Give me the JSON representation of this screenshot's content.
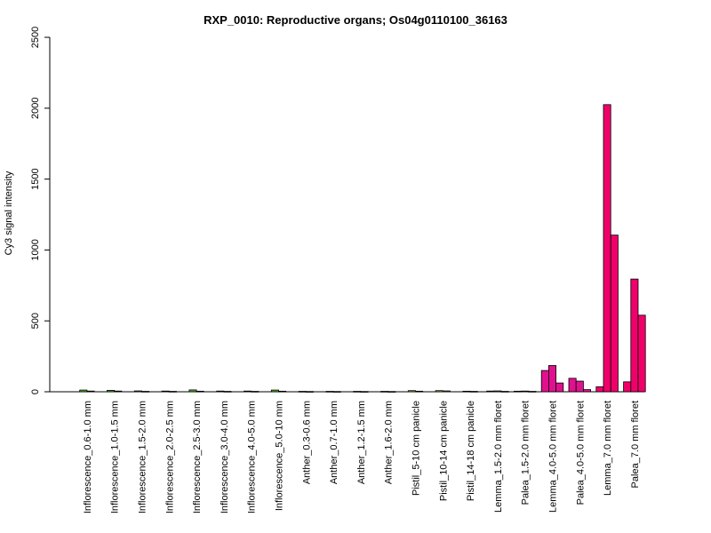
{
  "chart_data": {
    "type": "bar",
    "title": "RXP_0010: Reproductive organs; Os04g0110100_36163",
    "xlabel": "",
    "ylabel": "Cy3 signal intensity",
    "ylim": [
      0,
      2500
    ],
    "yticks": [
      0,
      500,
      1000,
      1500,
      2000,
      2500
    ],
    "grid": false,
    "legend": "none",
    "categories": [
      "Inflorescence_0.6-1.0 mm",
      "Inflorescence_1.0-1.5 mm",
      "Inflorescence_1.5-2.0 mm",
      "Inflorescence_2.0-2.5 mm",
      "Inflorescence_2.5-3.0 mm",
      "Inflorescence_3.0-4.0 mm",
      "Inflorescence_4.0-5.0 mm",
      "Inflorescence_5.0-10 mm",
      "Anther_0.3-0.6 mm",
      "Anther_0.7-1.0 mm",
      "Anther_1.2-1.5 mm",
      "Anther_1.6-2.0 mm",
      "Pistil_5-10 cm panicle",
      "Pistil_10-14 cm panicle",
      "Pistil_14-18 cm panicle",
      "Lemma_1.5-2.0 mm floret",
      "Palea_1.5-2.0 mm floret",
      "Lemma_4.0-5.0 mm floret",
      "Palea_4.0-5.0 mm floret",
      "Lemma_7.0 mm floret",
      "Palea_7.0 mm floret"
    ],
    "groups": [
      {
        "color": "#4daf2b",
        "values": [
          12,
          5
        ]
      },
      {
        "color": "#4daf2b",
        "values": [
          10,
          5
        ]
      },
      {
        "color": "#4daf2b",
        "values": [
          6,
          3
        ]
      },
      {
        "color": "#4daf2b",
        "values": [
          5,
          3
        ]
      },
      {
        "color": "#4daf2b",
        "values": [
          13,
          4
        ]
      },
      {
        "color": "#4daf2b",
        "values": [
          5,
          3
        ]
      },
      {
        "color": "#4daf2b",
        "values": [
          5,
          3
        ]
      },
      {
        "color": "#4daf2b",
        "values": [
          12,
          4
        ]
      },
      {
        "color": "#999999",
        "values": [
          3,
          2
        ]
      },
      {
        "color": "#999999",
        "values": [
          3,
          2
        ]
      },
      {
        "color": "#999999",
        "values": [
          3,
          2
        ]
      },
      {
        "color": "#999999",
        "values": [
          3,
          2
        ]
      },
      {
        "color": "#b5a642",
        "values": [
          8,
          4
        ]
      },
      {
        "color": "#b5a642",
        "values": [
          8,
          6
        ]
      },
      {
        "color": "#b5a642",
        "values": [
          4,
          3
        ]
      },
      {
        "color": "#e0118f",
        "values": [
          5,
          6,
          3
        ]
      },
      {
        "color": "#e0118f",
        "values": [
          4,
          5,
          3
        ]
      },
      {
        "color": "#e0118f",
        "values": [
          150,
          185,
          62
        ]
      },
      {
        "color": "#e0118f",
        "values": [
          95,
          75,
          15
        ]
      },
      {
        "color": "#f0006a",
        "values": [
          35,
          2025,
          1105
        ]
      },
      {
        "color": "#f0006a",
        "values": [
          70,
          795,
          540
        ]
      }
    ]
  }
}
